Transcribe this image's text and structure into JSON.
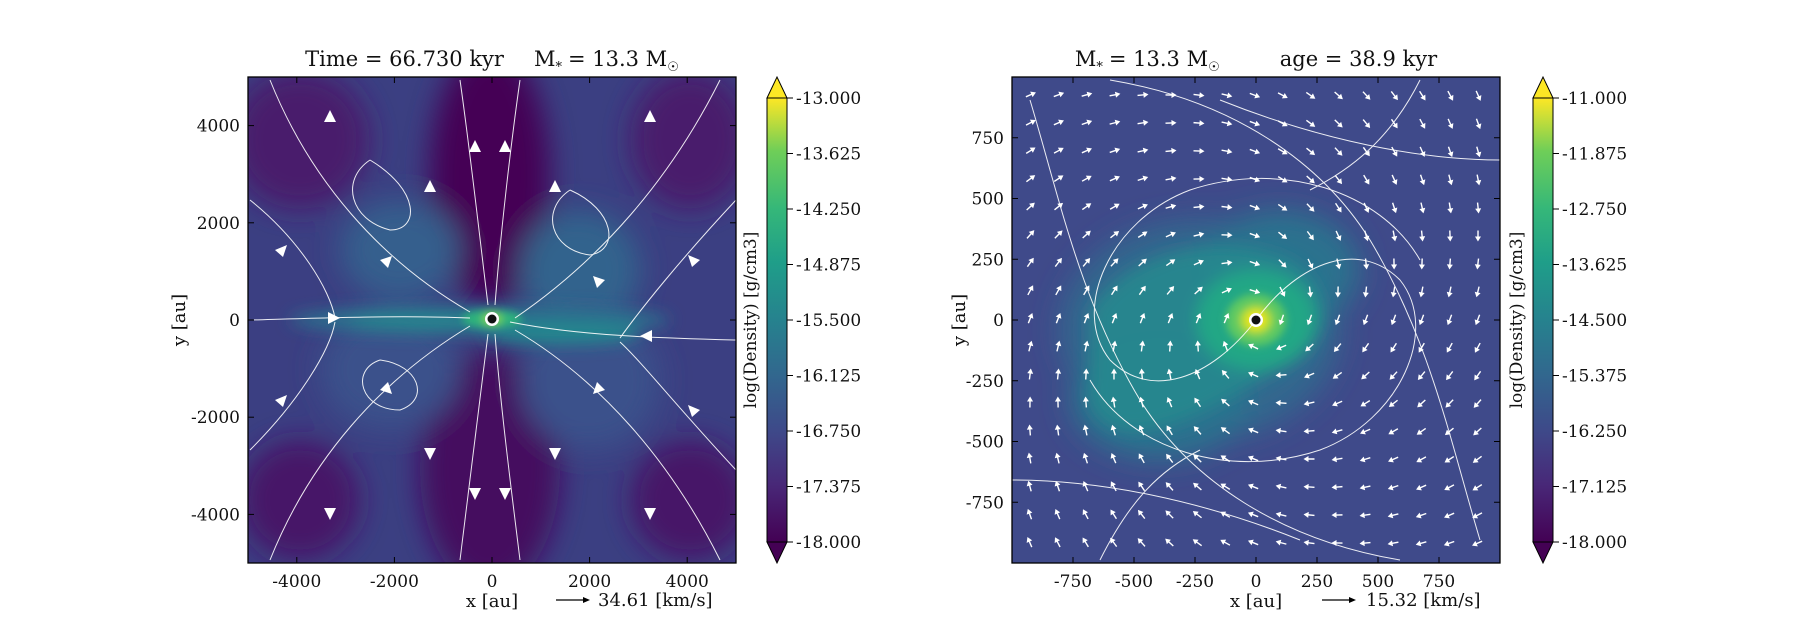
{
  "chart_data": [
    {
      "type": "heatmap",
      "title": "Time = 66.730 kyr    M_* = 13.3 M_sun",
      "title_parts": {
        "left_label": "Time = 66.730 kyr",
        "mass_label": "M",
        "mass_sub": "*",
        "mass_value": "= 13.3 M",
        "mass_unit_sub": "☉"
      },
      "xlabel": "x [au]",
      "ylabel": "y [au]",
      "xlim": [
        -5000,
        5000
      ],
      "ylim": [
        -5000,
        5000
      ],
      "xticks": [
        -4000,
        -2000,
        0,
        2000,
        4000
      ],
      "yticks": [
        -4000,
        -2000,
        0,
        2000,
        4000
      ],
      "xtick_labels": [
        "-4000",
        "-2000",
        "0",
        "2000",
        "4000"
      ],
      "ytick_labels": [
        "-4000",
        "-2000",
        "0",
        "2000",
        "4000"
      ],
      "vector_scale_label": "34.61 [km/s]",
      "colorbar": {
        "label": "log(Density) [g/cm3]",
        "range": [
          -18.0,
          -13.0
        ],
        "ticks": [
          -13.0,
          -13.625,
          -14.25,
          -14.875,
          -15.5,
          -16.125,
          -16.75,
          -17.375,
          -18.0
        ],
        "tick_labels": [
          "-13.000",
          "-13.625",
          "-14.250",
          "-14.875",
          "-15.500",
          "-16.125",
          "-16.750",
          "-17.375",
          "-18.000"
        ],
        "colormap": "viridis",
        "extend": "both"
      },
      "star_position": [
        0,
        0
      ]
    },
    {
      "type": "heatmap",
      "title": "M_* = 13.3 M_sun    age = 38.9 kyr",
      "title_parts": {
        "mass_label": "M",
        "mass_sub": "*",
        "mass_value": "= 13.3 M",
        "mass_unit_sub": "☉",
        "age_label": "age = 38.9 kyr"
      },
      "xlabel": "x [au]",
      "ylabel": "y [au]",
      "xlim": [
        -1000,
        1000
      ],
      "ylim": [
        -1000,
        1000
      ],
      "xticks": [
        -750,
        -500,
        -250,
        0,
        250,
        500,
        750
      ],
      "yticks": [
        -750,
        -500,
        -250,
        0,
        250,
        500,
        750
      ],
      "xtick_labels": [
        "-750",
        "-500",
        "-250",
        "0",
        "250",
        "500",
        "750"
      ],
      "ytick_labels": [
        "-750",
        "-500",
        "-250",
        "0",
        "250",
        "500",
        "750"
      ],
      "vector_scale_label": "15.32 [km/s]",
      "colorbar": {
        "label": "log(Density) [g/cm3]",
        "range": [
          -18.0,
          -11.0
        ],
        "ticks": [
          -11.0,
          -11.875,
          -12.75,
          -13.625,
          -14.5,
          -15.375,
          -16.25,
          -17.125,
          -18.0
        ],
        "tick_labels": [
          "-11.000",
          "-11.875",
          "-12.750",
          "-13.625",
          "-14.500",
          "-15.375",
          "-16.250",
          "-17.125",
          "-18.000"
        ],
        "colormap": "viridis",
        "extend": "both"
      },
      "star_position": [
        0,
        0
      ]
    }
  ],
  "colors": {
    "viridis_low": "#440154",
    "viridis_mid": "#21918c",
    "viridis_high": "#fde725",
    "arrow": "#ffffff",
    "axis": "#000000"
  }
}
